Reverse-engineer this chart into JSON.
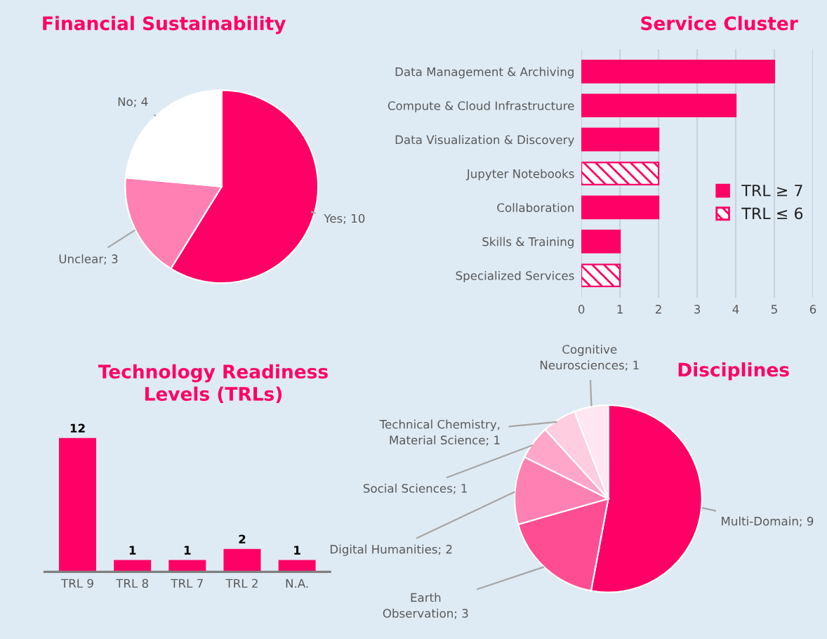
{
  "chart_data": [
    {
      "type": "pie",
      "title": "Financial Sustainability",
      "categories": [
        "Yes; 10",
        "Unclear; 3",
        "No; 4"
      ],
      "values": [
        10,
        3,
        4
      ],
      "colors": [
        "#ff0066",
        "#ff80b3",
        "#ffffff"
      ],
      "legend": false
    },
    {
      "type": "bar",
      "title": "Service Cluster",
      "orientation": "horizontal",
      "categories": [
        "Data Management & Archiving",
        "Compute & Cloud Infrastructure",
        "Data Visualization & Discovery",
        "Jupyter Notebooks",
        "Collaboration",
        "Skills & Training",
        "Specialized Services"
      ],
      "series": [
        {
          "name": "TRL ≥ 7",
          "color": "#ff0066",
          "values": [
            5,
            4,
            2,
            null,
            2,
            1,
            null
          ]
        },
        {
          "name": "TRL ≤ 6",
          "color": "#ff0066",
          "values": [
            null,
            null,
            null,
            2,
            null,
            null,
            1
          ]
        }
      ],
      "xlim": [
        0,
        6
      ],
      "xticks": [
        0,
        1,
        2,
        3,
        4,
        5,
        6
      ],
      "grid": "x",
      "legend": "right"
    },
    {
      "type": "bar",
      "title": "Technology Readiness\nLevels (TRLs)",
      "categories": [
        "TRL 9",
        "TRL 8",
        "TRL 7",
        "TRL 2",
        "N.A."
      ],
      "values": [
        12,
        1,
        1,
        2,
        1
      ],
      "color": "#ff0066",
      "data_labels": true,
      "tick_labels": "x"
    },
    {
      "type": "pie",
      "title": "Disciplines",
      "categories": [
        "Multi-Domain; 9",
        "Earth\nObservation; 3",
        "Digital Humanities; 2",
        "Social Sciences; 1",
        "Technical Chemistry,\nMaterial Science; 1",
        "Cognitive\nNeurosciences; 1"
      ],
      "values": [
        9,
        3,
        2,
        1,
        1,
        1
      ],
      "colors": [
        "#ff0066",
        "#ff4d94",
        "#ff80b3",
        "#ffa6c9",
        "#ffcce0",
        "#ffe6f0"
      ],
      "legend": false
    }
  ]
}
